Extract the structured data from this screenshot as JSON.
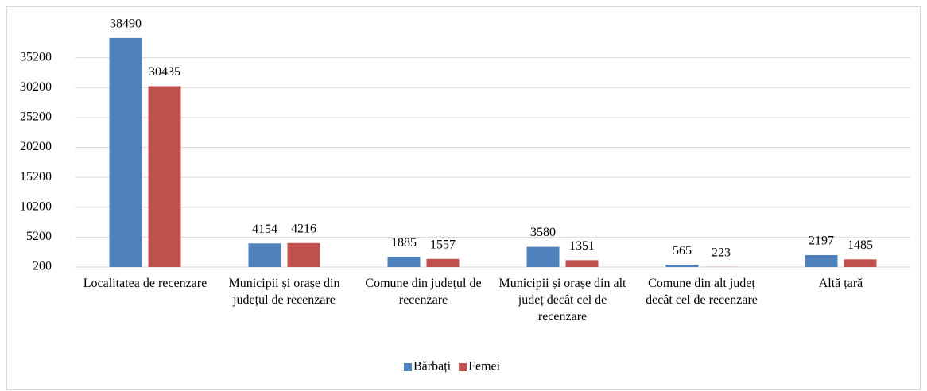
{
  "chart_data": {
    "type": "bar",
    "categories": [
      "Localitatea de recenzare",
      "Municipii și orașe din județul de recenzare",
      "Comune din județul de recenzare",
      "Municipii și orașe din alt județ decât cel de recenzare",
      "Comune din alt județ decât cel de recenzare",
      "Altă țară"
    ],
    "series": [
      {
        "name": "Bărbați",
        "color": "#4f81bd",
        "values": [
          38490,
          4154,
          1885,
          3580,
          565,
          2197
        ]
      },
      {
        "name": "Femei",
        "color": "#c0504d",
        "values": [
          30435,
          4216,
          1557,
          1351,
          223,
          1485
        ]
      }
    ],
    "ylim": [
      200,
      40200
    ],
    "yticks": [
      200,
      5200,
      10200,
      15200,
      20200,
      25200,
      30200,
      35200
    ],
    "grid": true,
    "legend": "bottom"
  }
}
